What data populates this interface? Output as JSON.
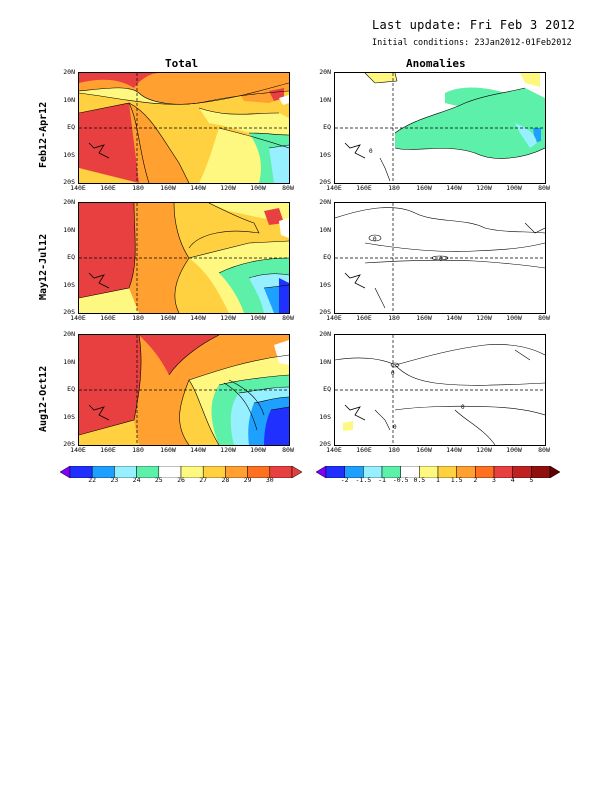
{
  "header": {
    "last_update": "Last update: Fri Feb 3 2012",
    "initial_conditions": "Initial conditions: 23Jan2012-01Feb2012"
  },
  "columns": {
    "total": "Total",
    "anomalies": "Anomalies"
  },
  "rows": [
    "Feb12-Apr12",
    "May12-Jul12",
    "Aug12-Oct12"
  ],
  "axes": {
    "lat_labels": [
      "20N",
      "10N",
      "EQ",
      "10S",
      "20S"
    ],
    "lon_labels": [
      "140E",
      "160E",
      "180",
      "160W",
      "140W",
      "120W",
      "100W",
      "80W"
    ]
  },
  "colorbar_total": {
    "labels": [
      "22",
      "23",
      "24",
      "25",
      "26",
      "27",
      "28",
      "29",
      "30"
    ],
    "colors": [
      "#8000ff",
      "#2030ff",
      "#1ea0ff",
      "#96f0ff",
      "#5cf0a8",
      "#ffffff",
      "#fff880",
      "#ffd040",
      "#ffa030",
      "#ff7020",
      "#e84040",
      "#e04040"
    ]
  },
  "colorbar_anom": {
    "labels": [
      "-2",
      "-1.5",
      "-1",
      "-0.5",
      "0.5",
      "1",
      "1.5",
      "2",
      "3",
      "4",
      "5"
    ],
    "colors": [
      "#8000ff",
      "#2030ff",
      "#1ea0ff",
      "#96f0ff",
      "#5cf0a8",
      "#ffffff",
      "#fff880",
      "#ffd040",
      "#ffa030",
      "#ff7020",
      "#e84040",
      "#c02020",
      "#901010",
      "#600000"
    ]
  },
  "contour_labels": {
    "anom_zero": "0"
  }
}
